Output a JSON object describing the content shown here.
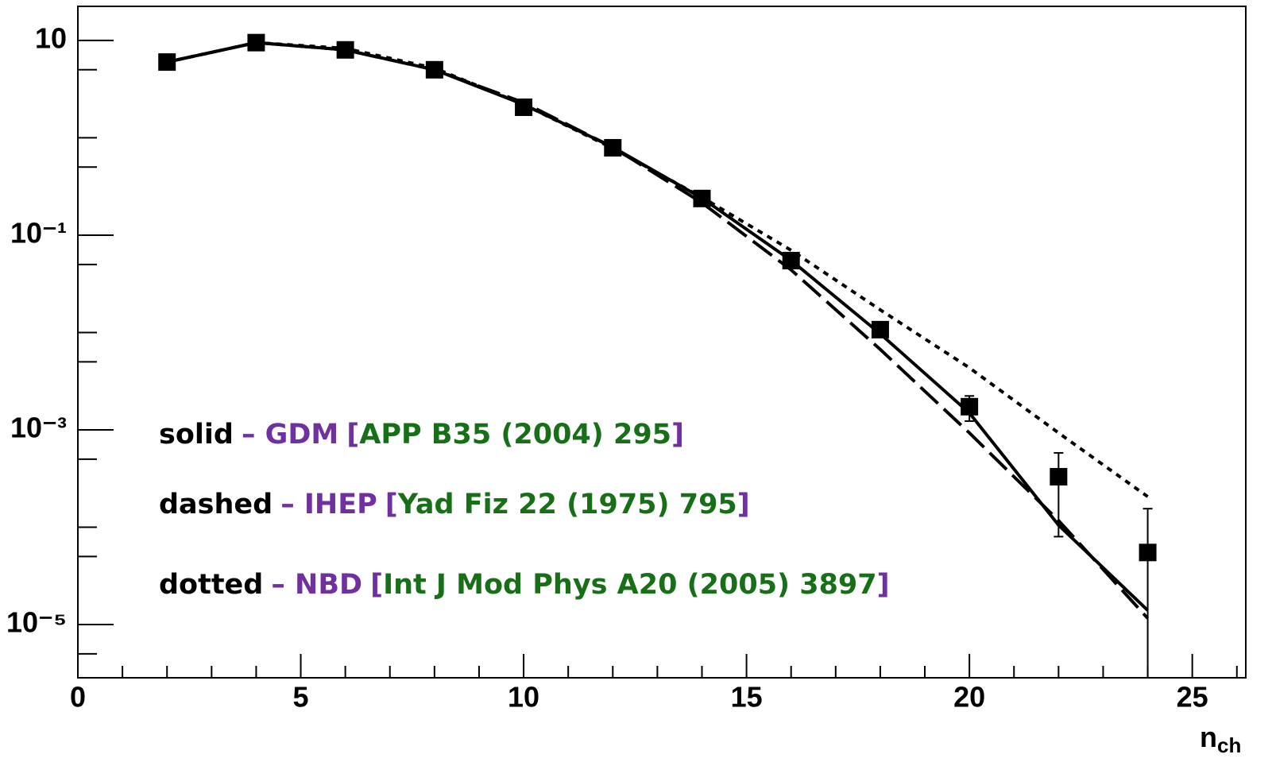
{
  "chart_data": {
    "type": "line",
    "x_label": "n",
    "x_label_sub": "ch",
    "xlim": [
      0,
      26.2
    ],
    "xticks": [
      0,
      5,
      10,
      15,
      20,
      25
    ],
    "xminorticks": [
      1,
      2,
      3,
      4,
      6,
      7,
      8,
      9,
      11,
      12,
      13,
      14,
      16,
      17,
      18,
      19,
      21,
      22,
      23,
      24,
      26
    ],
    "ylim": [
      2.84e-06,
      22.4
    ],
    "ylog": true,
    "yticks": [
      10,
      {
        "value": 0.1,
        "label": "10⁻¹"
      },
      {
        "value": 0.001,
        "label": "10⁻³"
      },
      {
        "value": 1e-05,
        "label": "10⁻⁵"
      }
    ],
    "yminorticks": [
      5,
      1,
      0.5,
      0.05,
      0.01,
      0.005,
      0.0005,
      0.0001,
      5e-05,
      5e-06
    ],
    "x": [
      2,
      4,
      6,
      8,
      10,
      12,
      14,
      16,
      18,
      20,
      22,
      24
    ],
    "points": {
      "marker": "square",
      "color": "#000000",
      "values": [
        6.0,
        9.5,
        8.0,
        5.0,
        2.06,
        0.79,
        0.238,
        0.0548,
        0.0107,
        0.00173,
        0.00033,
        5.5e-05
      ],
      "errors": [
        null,
        null,
        null,
        null,
        null,
        null,
        null,
        null,
        null,
        0.0005,
        0.00025,
        0.0001
      ]
    },
    "brackets": [
      "[",
      "]"
    ],
    "label_color": "#000000",
    "model_color": "#7030a0",
    "reference_color": "#177017",
    "series": [
      {
        "name": "solid",
        "linestyle": "solid",
        "model": "– GDM",
        "reference": "APP B35 (2004) 295",
        "color": "#000000",
        "values": [
          6.0,
          9.5,
          8.0,
          5.0,
          2.2,
          0.8,
          0.24,
          0.055,
          0.0097,
          0.00149,
          0.000105,
          1.4e-05
        ]
      },
      {
        "name": "dashed",
        "linestyle": "dashed",
        "model": "– IHEP",
        "reference": "Yad Fiz 22 (1975) 795",
        "color": "#000000",
        "values": [
          6.0,
          9.5,
          8.0,
          5.0,
          2.3,
          0.8,
          0.215,
          0.044,
          0.0067,
          0.00093,
          0.000117,
          1.16e-05
        ]
      },
      {
        "name": "dotted",
        "linestyle": "dotted",
        "model": "– NBD",
        "reference": "Int J Mod Phys A20 (2005) 3897",
        "color": "#000000",
        "values": [
          6.0,
          9.5,
          8.3,
          5.2,
          2.2,
          0.78,
          0.245,
          0.07,
          0.0171,
          0.00434,
          0.00093,
          0.000206
        ]
      }
    ]
  }
}
